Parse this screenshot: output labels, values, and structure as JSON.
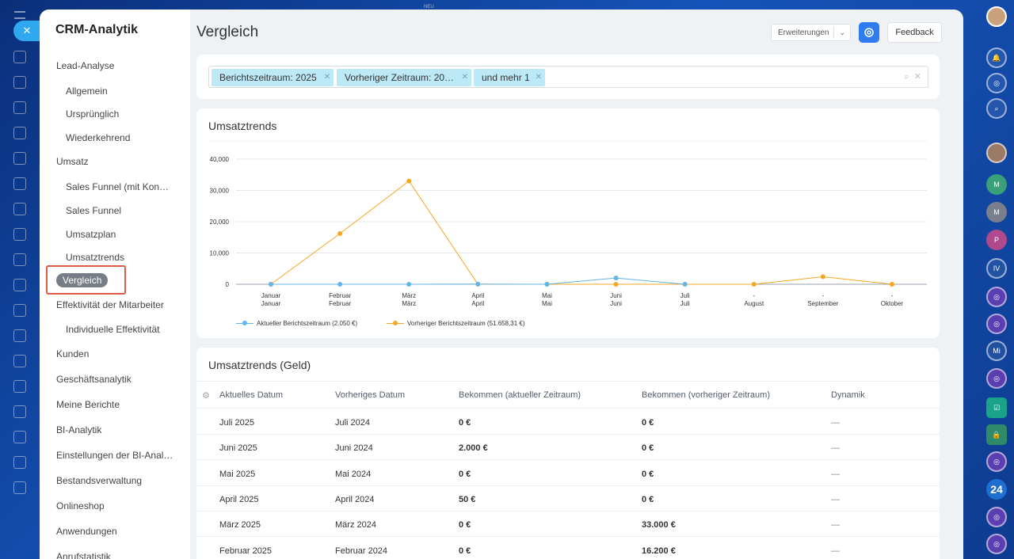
{
  "app": {
    "title": "CRM-Analytik",
    "top_label": "NEU"
  },
  "sidebar": {
    "items": [
      {
        "label": "Lead-Analyse",
        "level": 1
      },
      {
        "label": "Allgemein",
        "level": 2
      },
      {
        "label": "Ursprünglich",
        "level": 2
      },
      {
        "label": "Wiederkehrend",
        "level": 2
      },
      {
        "label": "Umsatz",
        "level": 1
      },
      {
        "label": "Sales Funnel (mit Kon…",
        "level": 2
      },
      {
        "label": "Sales Funnel",
        "level": 2
      },
      {
        "label": "Umsatzplan",
        "level": 2
      },
      {
        "label": "Umsatztrends",
        "level": 2
      },
      {
        "label": "Vergleich",
        "level": 2,
        "active": true
      },
      {
        "label": "Effektivität der Mitarbeiter",
        "level": 1
      },
      {
        "label": "Individuelle Effektivität",
        "level": 2
      },
      {
        "label": "Kunden",
        "level": 1
      },
      {
        "label": "Geschäftsanalytik",
        "level": 1
      },
      {
        "label": "Meine Berichte",
        "level": 1
      },
      {
        "label": "BI-Analytik",
        "level": 1
      },
      {
        "label": "Einstellungen der BI-Anal…",
        "level": 1
      },
      {
        "label": "Bestandsverwaltung",
        "level": 1
      },
      {
        "label": "Onlineshop",
        "level": 1
      },
      {
        "label": "Anwendungen",
        "level": 1
      },
      {
        "label": "Anrufstatistik",
        "level": 1
      }
    ]
  },
  "header": {
    "title": "Vergleich",
    "extensions_label": "Erweiterungen",
    "feedback_label": "Feedback"
  },
  "filter": {
    "chips": [
      "Berichtszeitraum: 2025",
      "Vorheriger Zeitraum: 20…",
      "und mehr 1"
    ]
  },
  "chart_card": {
    "title": "Umsatztrends"
  },
  "chart_data": {
    "type": "line",
    "title": "Umsatztrends",
    "categories": [
      [
        "Januar",
        "Januar"
      ],
      [
        "Februar",
        "Februar"
      ],
      [
        "März",
        "März"
      ],
      [
        "April",
        "April"
      ],
      [
        "Mai",
        "Mai"
      ],
      [
        "Juni",
        "Juni"
      ],
      [
        "Juli",
        "Juli"
      ],
      [
        "-",
        "August"
      ],
      [
        "-",
        "September"
      ],
      [
        "-",
        "Oktober"
      ]
    ],
    "yticks": [
      "0",
      "10,000",
      "20,000",
      "30,000",
      "40,000"
    ],
    "ylim": [
      0,
      40000
    ],
    "grid": true,
    "legend_position": "bottom-left",
    "series": [
      {
        "name": "Aktueller Berichtszeitraum (2.050 €)",
        "color": "#64b5e8",
        "values": [
          0,
          0,
          0,
          50,
          0,
          2000,
          0,
          null,
          null,
          null
        ]
      },
      {
        "name": "Vorheriger Berichtszeitraum (51.658,31 €)",
        "color": "#f5a623",
        "values": [
          0,
          16200,
          33000,
          0,
          0,
          0,
          0,
          0,
          2400,
          0
        ]
      }
    ]
  },
  "table": {
    "title": "Umsatztrends (Geld)",
    "columns": [
      "Aktuelles Datum",
      "Vorheriges Datum",
      "Bekommen (aktueller Zeitraum)",
      "Bekommen (vorheriger Zeitraum)",
      "Dynamik"
    ],
    "rows": [
      [
        "Juli 2025",
        "Juli 2024",
        "0 €",
        "0 €",
        "—"
      ],
      [
        "Juni 2025",
        "Juni 2024",
        "2.000 €",
        "0 €",
        "—"
      ],
      [
        "Mai 2025",
        "Mai 2024",
        "0 €",
        "0 €",
        "—"
      ],
      [
        "April 2025",
        "April 2024",
        "50 €",
        "0 €",
        "—"
      ],
      [
        "März 2025",
        "März 2024",
        "0 €",
        "33.000 €",
        "—"
      ],
      [
        "Februar 2025",
        "Februar 2024",
        "0 €",
        "16.200 €",
        "—"
      ]
    ]
  },
  "right_rail": {
    "badge_24": "24",
    "avatars": [
      "M",
      "M",
      "P",
      "IV",
      "Mi"
    ]
  },
  "colors": {
    "accent": "#2f7cf0",
    "chip": "#bde9f7",
    "highlight": "#e05a4a"
  }
}
